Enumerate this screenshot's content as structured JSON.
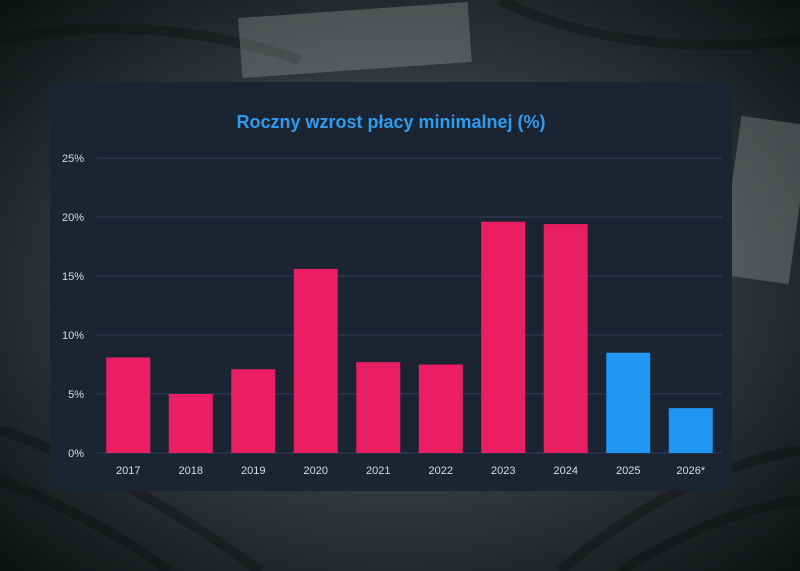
{
  "chart_data": {
    "type": "bar",
    "title": "Roczny wzrost płacy minimalnej (%)",
    "xlabel": "",
    "ylabel": "",
    "categories": [
      "2017",
      "2018",
      "2019",
      "2020",
      "2021",
      "2022",
      "2023",
      "2024",
      "2025",
      "2026*"
    ],
    "values": [
      8.1,
      5.0,
      7.1,
      15.6,
      7.7,
      7.5,
      19.6,
      19.4,
      8.5,
      3.8
    ],
    "bar_colors": [
      "#e91e63",
      "#e91e63",
      "#e91e63",
      "#e91e63",
      "#e91e63",
      "#e91e63",
      "#e91e63",
      "#e91e63",
      "#2196f3",
      "#2196f3"
    ],
    "ylim": [
      0,
      25
    ],
    "yticks": [
      0,
      5,
      10,
      15,
      20,
      25
    ],
    "ytick_labels": [
      "0%",
      "5%",
      "10%",
      "15%",
      "20%",
      "25%"
    ],
    "grid": true,
    "legend": "none"
  },
  "colors": {
    "title": "#2f9bf0",
    "panel_background": "#1b2433",
    "gridline": "#34405a",
    "text": "#d9dde3"
  }
}
